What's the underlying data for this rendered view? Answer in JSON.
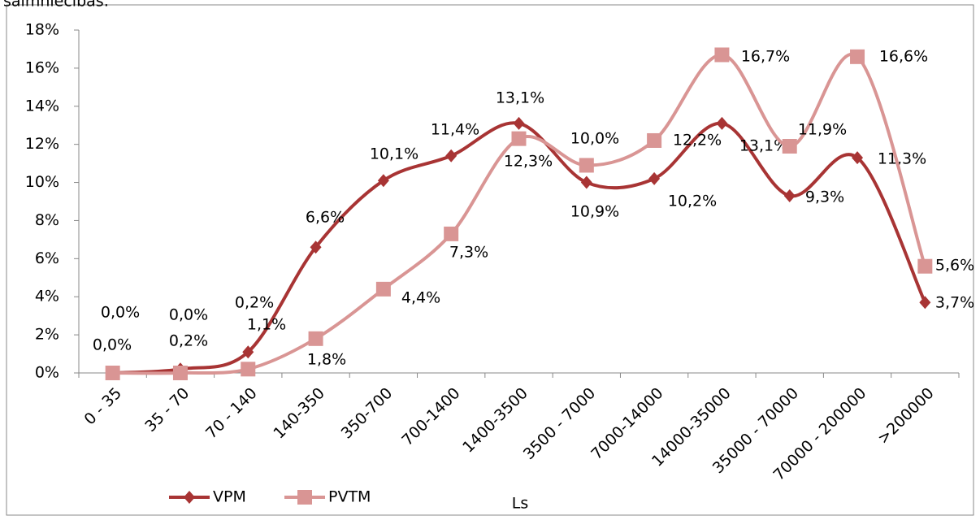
{
  "chart_data": {
    "type": "line",
    "title": "saimniecības:",
    "x_label": "Ls",
    "categories": [
      "0 - 35",
      "35 - 70",
      "70 - 140",
      "140-350",
      "350-700",
      "700-1400",
      "1400-3500",
      "3500 - 7000",
      "7000-14000",
      "14000-35000",
      "35000 - 70000",
      "70000 - 200000",
      ">200000"
    ],
    "series": [
      {
        "name": "VPM",
        "color": "#a83434",
        "values": [
          0.0,
          0.2,
          1.1,
          6.6,
          10.1,
          11.4,
          13.1,
          10.0,
          10.2,
          13.1,
          9.3,
          11.3,
          3.7
        ],
        "value_labels": [
          "0,0%",
          "0,2%",
          "1,1%",
          "6,6%",
          "10,1%",
          "11,4%",
          "13,1%",
          "10,0%",
          "10,2%",
          "13,1%",
          "9,3%",
          "11,3%",
          "3,7%"
        ]
      },
      {
        "name": "PVTM",
        "color": "#d99594",
        "values": [
          0.0,
          0.0,
          0.2,
          1.8,
          4.4,
          7.3,
          12.3,
          10.9,
          12.2,
          16.7,
          11.9,
          16.6,
          5.6
        ],
        "value_labels": [
          "0,0%",
          "0,0%",
          "0,2%",
          "1,8%",
          "4,4%",
          "7,3%",
          "12,3%",
          "10,9%",
          "12,2%",
          "16,7%",
          "11,9%",
          "16,6%",
          "5,6%"
        ]
      }
    ],
    "ylim": [
      0,
      18
    ],
    "yticks": [
      {
        "value": 0,
        "label": "0%"
      },
      {
        "value": 2,
        "label": "2%"
      },
      {
        "value": 4,
        "label": "4%"
      },
      {
        "value": 6,
        "label": "6%"
      },
      {
        "value": 8,
        "label": "8%"
      },
      {
        "value": 10,
        "label": "10%"
      },
      {
        "value": 12,
        "label": "12%"
      },
      {
        "value": 14,
        "label": "14%"
      },
      {
        "value": 16,
        "label": "16%"
      },
      {
        "value": 18,
        "label": "18%"
      }
    ],
    "legend": "bottom"
  }
}
